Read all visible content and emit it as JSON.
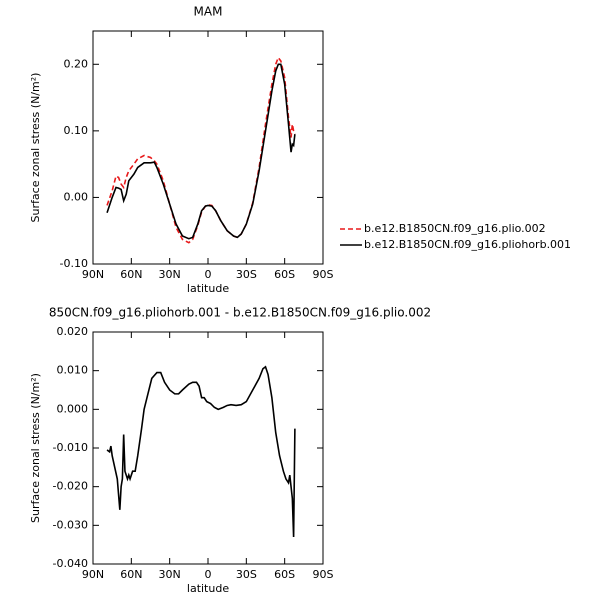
{
  "chart_data": [
    {
      "type": "line",
      "title": "MAM",
      "x_label": "latitude",
      "y_label": "Surface zonal stress (N/m²)",
      "xlim": [
        90,
        -90
      ],
      "ylim": [
        -0.1,
        0.25
      ],
      "xticks": [
        {
          "value": 90,
          "label": "90N"
        },
        {
          "value": 60,
          "label": "60N"
        },
        {
          "value": 30,
          "label": "30N"
        },
        0,
        {
          "value": -30,
          "label": "30S"
        },
        {
          "value": -60,
          "label": "60S"
        },
        {
          "value": -90,
          "label": "90S"
        }
      ],
      "yticks": [
        {
          "value": -0.1,
          "label": "-0.10"
        },
        {
          "value": 0,
          "label": "0.00"
        },
        {
          "value": 0.1,
          "label": "0.10"
        },
        {
          "value": 0.2,
          "label": "0.20"
        }
      ],
      "legend": "right",
      "x": [
        79,
        75,
        72,
        70,
        68,
        66,
        64,
        62,
        58,
        55,
        50,
        45,
        42,
        40,
        35,
        30,
        25,
        20,
        15,
        12,
        8,
        5,
        2,
        0,
        -3,
        -6,
        -10,
        -15,
        -20,
        -23,
        -26,
        -30,
        -35,
        -40,
        -45,
        -50,
        -53,
        -55,
        -57,
        -60,
        -63,
        -65,
        -66,
        -67,
        -68
      ],
      "series": [
        {
          "name": "b.e12.B1850CN.f09_g16.plio.002",
          "color": "#e8191a",
          "linestyle": "dashed",
          "values": [
            -0.012,
            0.01,
            0.032,
            0.03,
            0.02,
            0.015,
            0.03,
            0.04,
            0.05,
            0.058,
            0.063,
            0.06,
            0.055,
            0.05,
            0.025,
            -0.01,
            -0.045,
            -0.063,
            -0.068,
            -0.063,
            -0.042,
            -0.022,
            -0.013,
            -0.011,
            -0.012,
            -0.02,
            -0.035,
            -0.05,
            -0.058,
            -0.06,
            -0.055,
            -0.04,
            -0.008,
            0.045,
            0.11,
            0.17,
            0.2,
            0.21,
            0.205,
            0.18,
            0.12,
            0.09,
            0.11,
            0.1,
            0.095
          ]
        },
        {
          "name": "b.e12.B1850CN.f09_g16.pliohorb.001",
          "color": "#000000",
          "linestyle": "solid",
          "values": [
            -0.023,
            0.0,
            0.015,
            0.014,
            0.012,
            -0.005,
            0.005,
            0.025,
            0.035,
            0.045,
            0.052,
            0.052,
            0.053,
            0.045,
            0.02,
            -0.01,
            -0.04,
            -0.058,
            -0.062,
            -0.06,
            -0.04,
            -0.02,
            -0.013,
            -0.012,
            -0.013,
            -0.02,
            -0.035,
            -0.05,
            -0.058,
            -0.06,
            -0.055,
            -0.04,
            -0.01,
            0.04,
            0.1,
            0.16,
            0.19,
            0.2,
            0.2,
            0.17,
            0.11,
            0.068,
            0.08,
            0.078,
            0.095
          ]
        }
      ]
    },
    {
      "type": "line",
      "title": "850CN.f09_g16.pliohorb.001 - b.e12.B1850CN.f09_g16.plio.002",
      "x_label": "latitude",
      "y_label": "Surface zonal stress (N/m²)",
      "xlim": [
        90,
        -90
      ],
      "ylim": [
        -0.04,
        0.02
      ],
      "xticks": [
        {
          "value": 90,
          "label": "90N"
        },
        {
          "value": 60,
          "label": "60N"
        },
        {
          "value": 30,
          "label": "30N"
        },
        0,
        {
          "value": -30,
          "label": "30S"
        },
        {
          "value": -60,
          "label": "60S"
        },
        {
          "value": -90,
          "label": "90S"
        }
      ],
      "yticks": [
        {
          "value": -0.04,
          "label": "-0.040"
        },
        {
          "value": -0.03,
          "label": "-0.030"
        },
        {
          "value": -0.02,
          "label": "-0.020"
        },
        {
          "value": -0.01,
          "label": "-0.010"
        },
        {
          "value": 0,
          "label": "0.000"
        },
        {
          "value": 0.01,
          "label": "0.010"
        },
        {
          "value": 0.02,
          "label": "0.020"
        }
      ],
      "x": [
        79,
        77,
        76,
        75,
        73,
        71,
        69,
        68,
        67,
        66,
        65,
        63,
        62,
        61,
        59,
        57,
        55,
        52,
        50,
        47,
        44,
        40,
        37,
        34,
        30,
        26,
        23,
        20,
        15,
        12,
        9,
        7,
        5,
        3,
        1,
        -2,
        -5,
        -8,
        -12,
        -15,
        -18,
        -22,
        -26,
        -30,
        -35,
        -40,
        -43,
        -45,
        -47,
        -50,
        -53,
        -56,
        -59,
        -61,
        -63,
        -64,
        -66,
        -67,
        -68
      ],
      "series": [
        {
          "color": "#000000",
          "linestyle": "solid",
          "values": [
            -0.0105,
            -0.011,
            -0.0095,
            -0.012,
            -0.015,
            -0.018,
            -0.026,
            -0.02,
            -0.018,
            -0.0065,
            -0.016,
            -0.018,
            -0.017,
            -0.018,
            -0.016,
            -0.016,
            -0.012,
            -0.005,
            0.0,
            0.004,
            0.008,
            0.0095,
            0.0095,
            0.007,
            0.005,
            0.004,
            0.004,
            0.005,
            0.0065,
            0.007,
            0.007,
            0.006,
            0.003,
            0.003,
            0.002,
            0.0015,
            0.0005,
            0.0,
            0.0005,
            0.001,
            0.0012,
            0.001,
            0.0012,
            0.002,
            0.005,
            0.008,
            0.0105,
            0.011,
            0.009,
            0.003,
            -0.006,
            -0.012,
            -0.016,
            -0.018,
            -0.019,
            -0.017,
            -0.023,
            -0.033,
            -0.005
          ]
        }
      ]
    }
  ]
}
